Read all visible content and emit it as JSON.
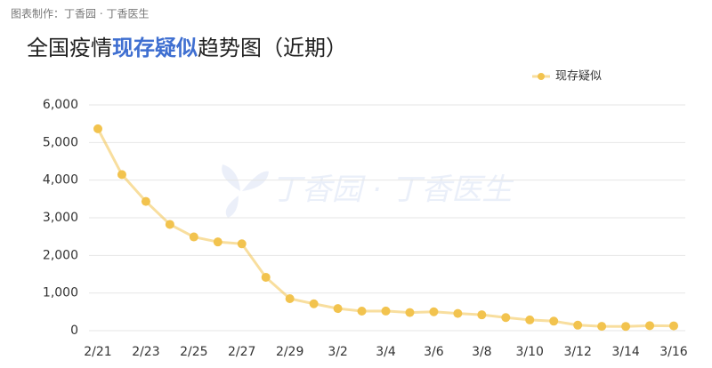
{
  "source": "图表制作：丁香园 · 丁香医生",
  "watermark": "丁香园 · 丁香医生",
  "chart_data": {
    "type": "line",
    "title": {
      "prefix": "全国疫情",
      "highlight": "现存疑似",
      "suffix": "趋势图（近期）"
    },
    "categories": [
      "2/21",
      null,
      "2/23",
      null,
      "2/25",
      null,
      "2/27",
      null,
      "2/29",
      null,
      "3/2",
      null,
      "3/4",
      null,
      "3/6",
      null,
      "3/8",
      null,
      "3/10",
      null,
      "3/12",
      null,
      "3/14",
      null,
      "3/16"
    ],
    "series": [
      {
        "name": "现存疑似",
        "color": "#f2c34e",
        "values": [
          5365,
          4148,
          3434,
          2824,
          2491,
          2358,
          2308,
          1418,
          851,
          715,
          587,
          520,
          522,
          482,
          502,
          458,
          421,
          349,
          285,
          253,
          147,
          115,
          113,
          134,
          128
        ]
      }
    ],
    "ylim": [
      0,
      6000
    ],
    "yticks": [
      0,
      {
        "value": 1000,
        "label": "1,000"
      },
      {
        "value": 2000,
        "label": "2,000"
      },
      {
        "value": 3000,
        "label": "3,000"
      },
      {
        "value": 4000,
        "label": "4,000"
      },
      {
        "value": 5000,
        "label": "5,000"
      },
      {
        "value": 6000,
        "label": "6,000"
      }
    ],
    "grid": true,
    "legend": "top-right"
  }
}
